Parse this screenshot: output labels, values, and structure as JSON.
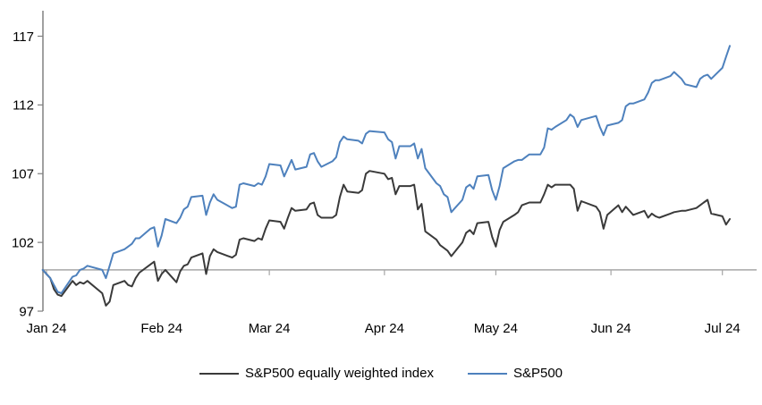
{
  "chart_data": {
    "type": "line",
    "title": "",
    "xlabel": "",
    "ylabel": "",
    "ylim": [
      96,
      118
    ],
    "y_ticks": [
      97,
      102,
      107,
      112,
      117
    ],
    "x_tick_labels": [
      "Jan 24",
      "Feb 24",
      "Mar 24",
      "Apr 24",
      "May 24",
      "Jun 24",
      "Jul 24"
    ],
    "reference_line": 100,
    "grid": "off",
    "legend_position": "bottom",
    "dates": [
      "12-31",
      "01-02",
      "01-03",
      "01-04",
      "01-05",
      "01-08",
      "01-09",
      "01-10",
      "01-11",
      "01-12",
      "01-16",
      "01-17",
      "01-18",
      "01-19",
      "01-22",
      "01-23",
      "01-24",
      "01-25",
      "01-26",
      "01-29",
      "01-30",
      "01-31",
      "02-01",
      "02-02",
      "02-05",
      "02-06",
      "02-07",
      "02-08",
      "02-09",
      "02-12",
      "02-13",
      "02-14",
      "02-15",
      "02-16",
      "02-20",
      "02-21",
      "02-22",
      "02-23",
      "02-26",
      "02-27",
      "02-28",
      "02-29",
      "03-01",
      "03-04",
      "03-05",
      "03-06",
      "03-07",
      "03-08",
      "03-11",
      "03-12",
      "03-13",
      "03-14",
      "03-15",
      "03-18",
      "03-19",
      "03-20",
      "03-21",
      "03-22",
      "03-25",
      "03-26",
      "03-27",
      "03-28",
      "04-01",
      "04-02",
      "04-03",
      "04-04",
      "04-05",
      "04-08",
      "04-09",
      "04-10",
      "04-11",
      "04-12",
      "04-15",
      "04-16",
      "04-17",
      "04-18",
      "04-19",
      "04-22",
      "04-23",
      "04-24",
      "04-25",
      "04-26",
      "04-29",
      "04-30",
      "05-01",
      "05-02",
      "05-03",
      "05-06",
      "05-07",
      "05-08",
      "05-09",
      "05-10",
      "05-13",
      "05-14",
      "05-15",
      "05-16",
      "05-17",
      "05-20",
      "05-21",
      "05-22",
      "05-23",
      "05-24",
      "05-28",
      "05-29",
      "05-30",
      "05-31",
      "06-03",
      "06-04",
      "06-05",
      "06-06",
      "06-07",
      "06-10",
      "06-11",
      "06-12",
      "06-13",
      "06-14",
      "06-17",
      "06-18",
      "06-20",
      "06-21",
      "06-24",
      "06-25",
      "06-26",
      "06-27",
      "06-28",
      "07-01",
      "07-02",
      "07-03"
    ],
    "series": [
      {
        "name": "S&P500 equally weighted index",
        "color": "#3a3a3a",
        "values": [
          100.0,
          99.4,
          98.6,
          98.2,
          98.1,
          99.2,
          98.9,
          99.1,
          99.0,
          99.2,
          98.3,
          97.4,
          97.7,
          98.9,
          99.2,
          98.9,
          98.8,
          99.4,
          99.8,
          100.4,
          100.6,
          99.2,
          99.7,
          100.0,
          99.1,
          99.9,
          100.3,
          100.4,
          100.9,
          101.2,
          99.7,
          101.0,
          101.5,
          101.3,
          100.9,
          101.1,
          102.2,
          102.3,
          102.1,
          102.3,
          102.2,
          103.0,
          103.6,
          103.5,
          103.0,
          103.8,
          104.5,
          104.3,
          104.4,
          104.8,
          104.9,
          104.0,
          103.8,
          103.8,
          104.0,
          105.3,
          106.2,
          105.7,
          105.6,
          105.8,
          107.0,
          107.2,
          107.0,
          106.6,
          106.7,
          105.5,
          106.1,
          106.1,
          106.2,
          104.4,
          104.8,
          102.8,
          102.2,
          101.8,
          101.6,
          101.4,
          101.0,
          102.0,
          102.7,
          102.9,
          102.6,
          103.4,
          103.5,
          102.4,
          101.7,
          102.9,
          103.5,
          104.0,
          104.2,
          104.7,
          104.8,
          104.9,
          104.9,
          105.5,
          106.2,
          106.0,
          106.2,
          106.2,
          106.2,
          105.9,
          104.3,
          105.0,
          104.6,
          104.2,
          103.0,
          104.0,
          104.7,
          104.2,
          104.6,
          104.3,
          104.0,
          104.3,
          103.8,
          104.1,
          103.9,
          103.8,
          104.1,
          104.2,
          104.3,
          104.3,
          104.5,
          104.7,
          104.9,
          105.1,
          104.1,
          103.9,
          103.3,
          103.7
        ]
      },
      {
        "name": "S&P500",
        "color": "#4e81bd",
        "values": [
          100.0,
          99.4,
          98.9,
          98.4,
          98.3,
          99.5,
          99.6,
          100.0,
          100.1,
          100.3,
          100.0,
          99.4,
          100.3,
          101.2,
          101.5,
          101.7,
          101.9,
          102.3,
          102.3,
          103.0,
          103.1,
          101.7,
          102.5,
          103.7,
          103.4,
          103.8,
          104.4,
          104.6,
          105.3,
          105.4,
          104.0,
          104.9,
          105.5,
          105.1,
          104.5,
          104.6,
          106.2,
          106.3,
          106.1,
          106.3,
          106.2,
          106.8,
          107.7,
          107.6,
          106.8,
          107.4,
          108.0,
          107.3,
          107.5,
          108.4,
          108.5,
          107.9,
          107.5,
          107.9,
          108.2,
          109.3,
          109.7,
          109.5,
          109.4,
          109.2,
          109.9,
          110.1,
          110.0,
          109.5,
          109.3,
          108.1,
          109.0,
          109.0,
          109.2,
          108.1,
          108.8,
          107.4,
          106.3,
          106.1,
          105.5,
          105.3,
          104.2,
          105.1,
          106.0,
          106.2,
          105.9,
          106.8,
          106.9,
          105.8,
          105.1,
          106.1,
          107.4,
          107.9,
          108.0,
          108.0,
          108.2,
          108.4,
          108.4,
          108.9,
          110.3,
          110.2,
          110.4,
          110.9,
          111.3,
          111.1,
          110.4,
          110.9,
          111.2,
          110.4,
          109.8,
          110.5,
          110.7,
          110.9,
          111.9,
          112.1,
          112.1,
          112.4,
          112.9,
          113.6,
          113.8,
          113.8,
          114.1,
          114.4,
          113.9,
          113.5,
          113.3,
          113.9,
          114.1,
          114.2,
          113.9,
          114.7,
          115.5,
          116.3
        ]
      }
    ]
  },
  "colors": {
    "axis": "#808080",
    "reference_line": "#a6a6a6",
    "text": "#000000",
    "background": "#ffffff"
  }
}
